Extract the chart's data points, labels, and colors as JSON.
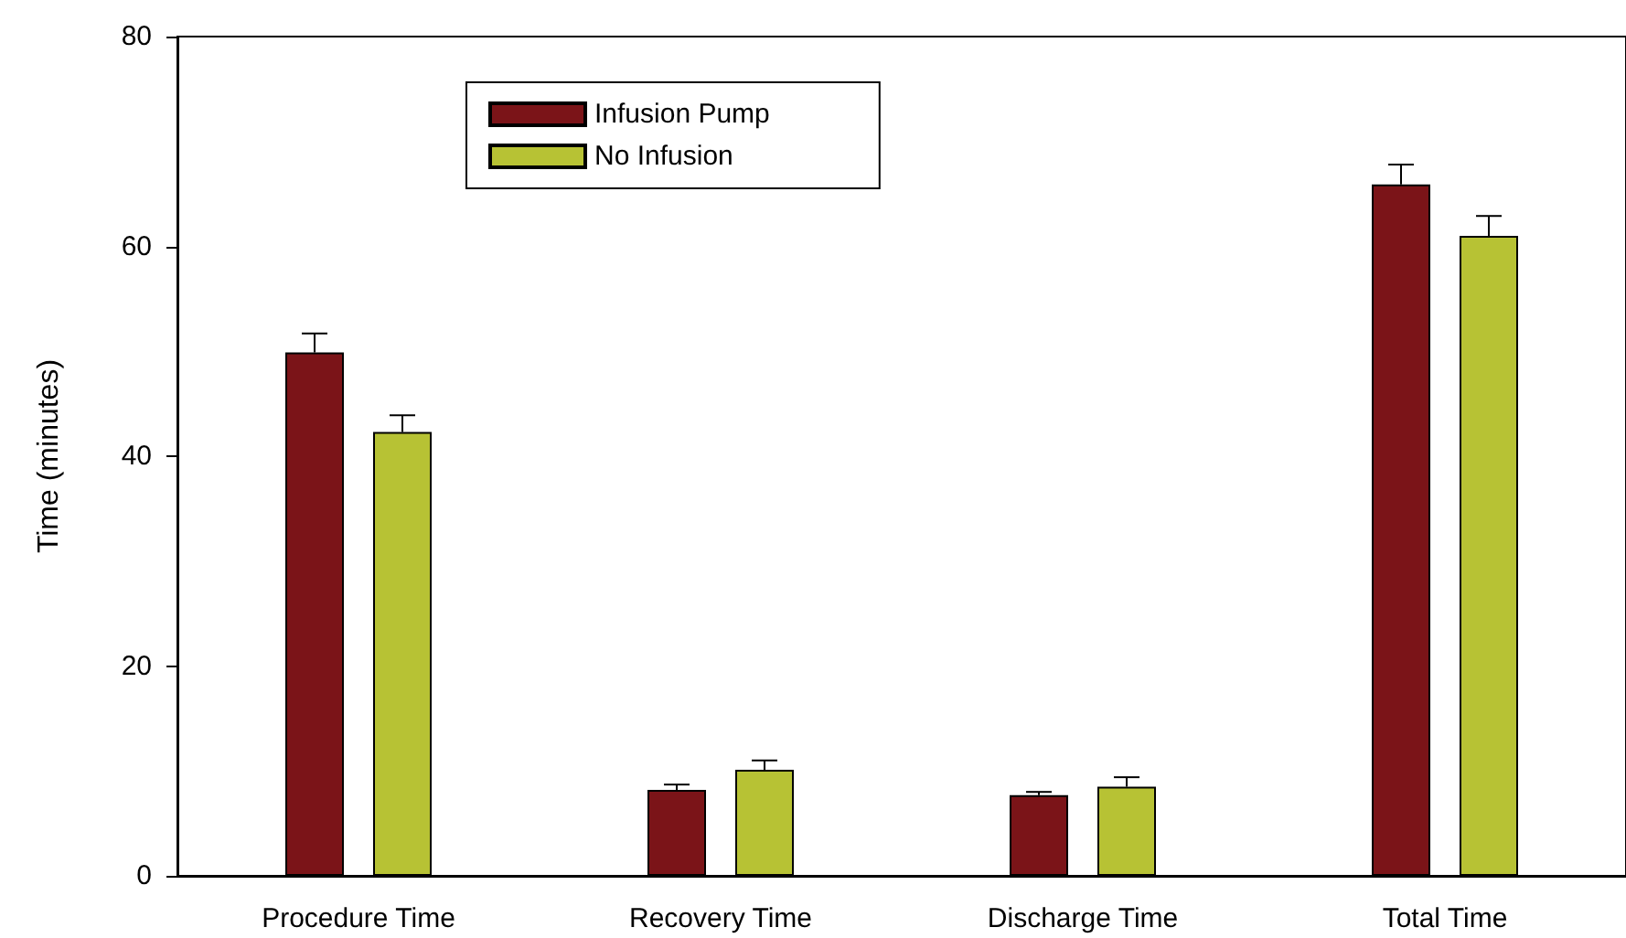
{
  "chart_data": {
    "type": "bar",
    "ylabel": "Time (minutes)",
    "categories": [
      "Procedure Time",
      "Recovery Time",
      "Discharge Time",
      "Total Time"
    ],
    "series": [
      {
        "name": "Infusion Pump",
        "color": "#7b1418",
        "values": [
          49.9,
          8.2,
          7.7,
          65.9
        ],
        "errors": [
          [
            49.9,
            51.7
          ],
          [
            8.2,
            8.7
          ],
          [
            7.7,
            8.0
          ],
          [
            65.9,
            67.8
          ]
        ]
      },
      {
        "name": "No Infusion",
        "color": "#b7c234",
        "values": [
          42.3,
          10.1,
          8.5,
          61.0
        ],
        "errors": [
          [
            42.3,
            43.9
          ],
          [
            10.1,
            11.0
          ],
          [
            8.5,
            9.4
          ],
          [
            61.0,
            62.9
          ]
        ]
      }
    ],
    "ylim": [
      0,
      80
    ],
    "yticks": [
      0,
      20,
      40,
      60,
      80
    ],
    "grid": false,
    "legend": "top left"
  }
}
